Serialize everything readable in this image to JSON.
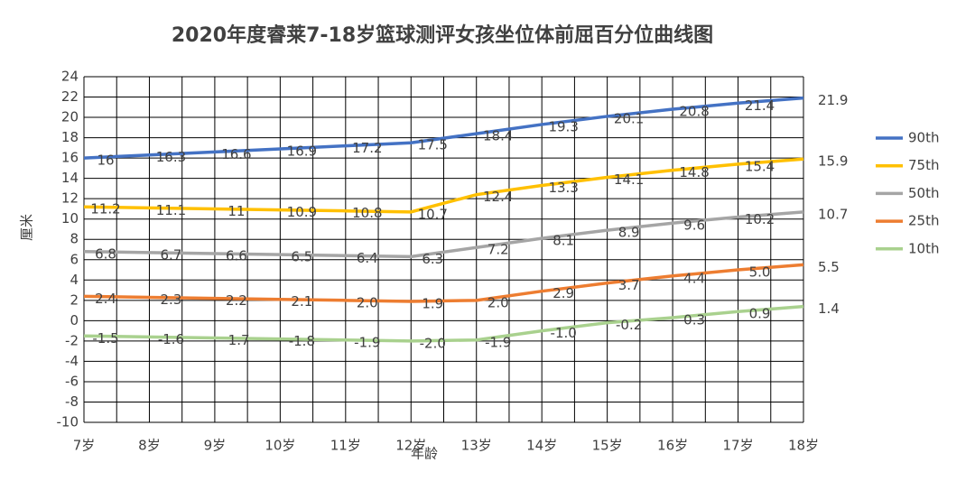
{
  "chart_data": {
    "type": "line",
    "title": "2020年度睿莱7-18岁篮球测评女孩坐位体前屈百分位曲线图",
    "x_label": "年龄",
    "y_label": "厘米",
    "categories": [
      "7岁",
      "8岁",
      "9岁",
      "10岁",
      "11岁",
      "12岁",
      "13岁",
      "14岁",
      "15岁",
      "16岁",
      "17岁",
      "18岁"
    ],
    "series": [
      {
        "name": "90th",
        "color": "#4472c4",
        "values": [
          16,
          16.3,
          16.6,
          16.9,
          17.2,
          17.5,
          18.4,
          19.3,
          20.1,
          20.8,
          21.4,
          21.9
        ]
      },
      {
        "name": "75th",
        "color": "#ffc000",
        "values": [
          11.2,
          11.1,
          11,
          10.9,
          10.8,
          10.7,
          12.4,
          13.3,
          14.1,
          14.8,
          15.4,
          15.9
        ]
      },
      {
        "name": "50th",
        "color": "#a5a5a5",
        "values": [
          6.8,
          6.7,
          6.6,
          6.5,
          6.4,
          6.3,
          7.2,
          8.1,
          8.9,
          9.6,
          10.2,
          10.7
        ]
      },
      {
        "name": "25th",
        "color": "#ed7d31",
        "values": [
          2.4,
          2.3,
          2.2,
          2.1,
          2.0,
          1.9,
          2.0,
          2.9,
          3.7,
          4.4,
          5.0,
          5.5
        ],
        "value_labels": [
          "2.4",
          "2.3",
          "2.2",
          "2.1",
          "2.0",
          "1.9",
          "2.0",
          "2.9",
          "3.7",
          "4.4",
          "5.0",
          "5.5"
        ]
      },
      {
        "name": "10th",
        "color": "#a9d18e",
        "values": [
          -1.5,
          -1.6,
          -1.7,
          -1.8,
          -1.9,
          -2.0,
          -1.9,
          -1.0,
          -0.2,
          0.3,
          0.9,
          1.4
        ],
        "value_labels": [
          "-1.5",
          "-1.6",
          "-1.7",
          "-1.8",
          "-1.9",
          "-2.0",
          "-1.9",
          "-1.0",
          "-0.2",
          "0.3",
          "0.9",
          "1.4"
        ]
      }
    ],
    "ylim": [
      -10,
      24
    ],
    "yticks": [
      -10,
      -8,
      -6,
      -4,
      -2,
      0,
      2,
      4,
      6,
      8,
      10,
      12,
      14,
      16,
      18,
      20,
      22,
      24
    ],
    "grid": true,
    "legend": "right"
  }
}
